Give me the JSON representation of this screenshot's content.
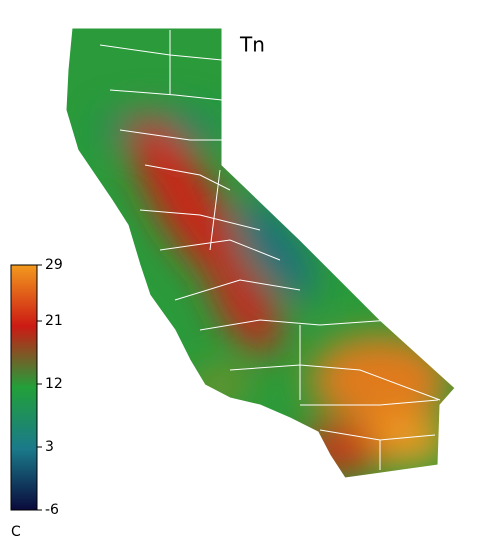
{
  "title": "Tn",
  "colorbar": {
    "label": "C",
    "lim": [
      -6,
      29
    ],
    "ticks": [
      29,
      21,
      12,
      3,
      -6
    ],
    "colors": [
      "#0a0a3c",
      "#1a7a8a",
      "#22a03a",
      "#cc1a14",
      "#f39a1e"
    ]
  }
}
